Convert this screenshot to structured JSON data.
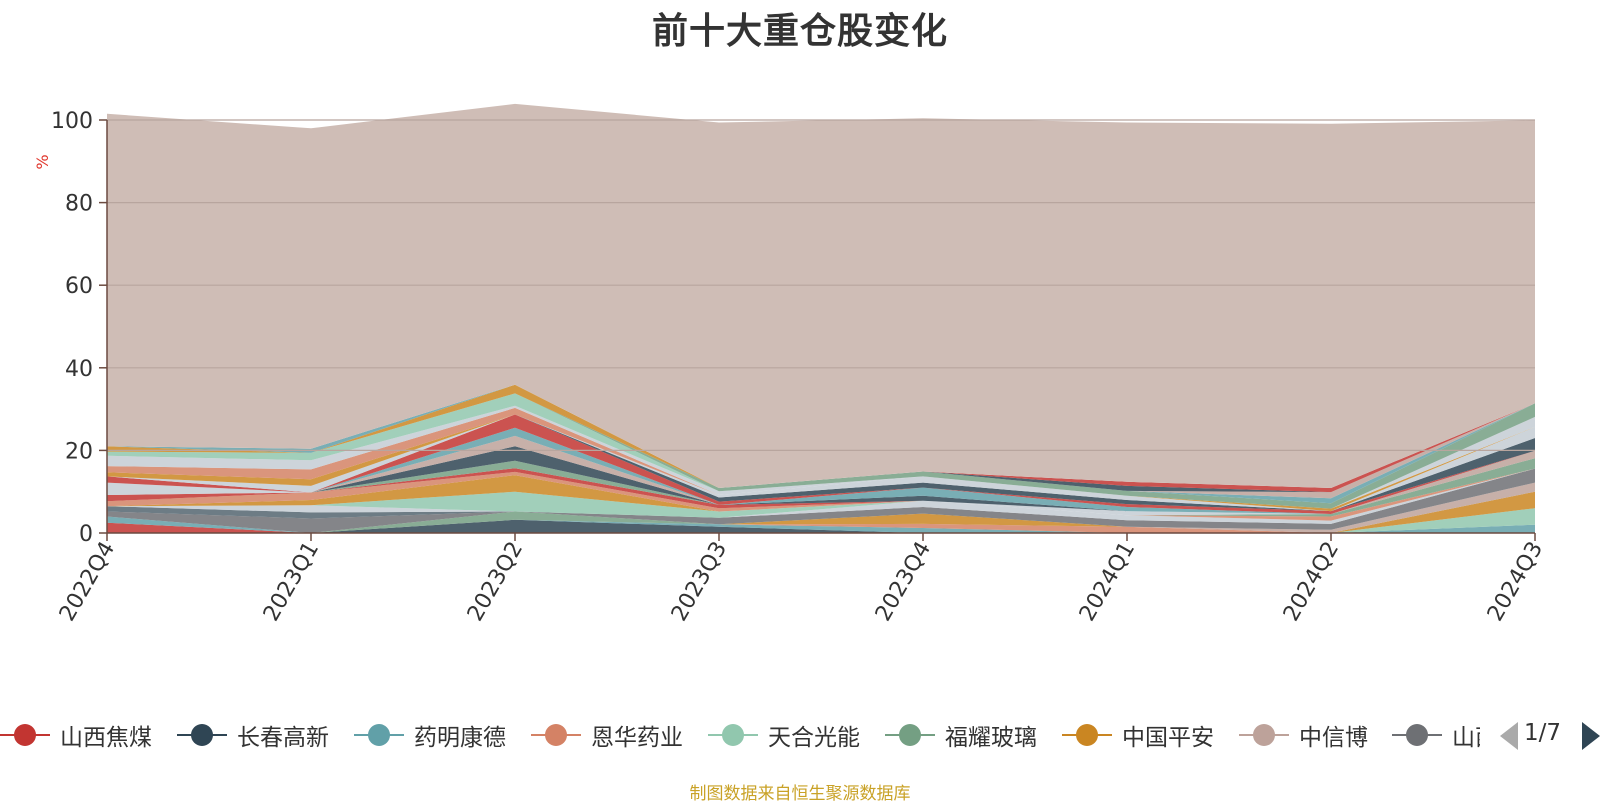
{
  "chart_data": {
    "type": "area",
    "stacked": true,
    "title": "前十大重仓股变化",
    "ylabel": "%",
    "ylim": [
      0,
      100
    ],
    "yticks": [
      "0",
      "20",
      "40",
      "60",
      "80",
      "100"
    ],
    "grid": true,
    "categories": [
      "2022Q4",
      "2023Q1",
      "2023Q2",
      "2023Q3",
      "2023Q4",
      "2024Q1",
      "2024Q2",
      "2024Q3"
    ],
    "series": [
      {
        "name": "山西焦煤",
        "color": "#c23531",
        "values": [
          2.5,
          0,
          0,
          0,
          0,
          0,
          0,
          0
        ]
      },
      {
        "name": "长春高新",
        "color": "#2f4554",
        "values": [
          0,
          0,
          3.2,
          1.5,
          0,
          0,
          0,
          0
        ]
      },
      {
        "name": "药明康德",
        "color": "#61a0a8",
        "values": [
          1.5,
          0,
          0,
          0.6,
          1.2,
          0,
          0,
          2.0
        ]
      },
      {
        "name": "恩华药业",
        "color": "#d48265",
        "values": [
          0,
          0,
          0,
          0,
          1.0,
          1.5,
          0,
          0
        ]
      },
      {
        "name": "天合光能",
        "color": "#91c7ae",
        "values": [
          0,
          0,
          0,
          0,
          0,
          0,
          0,
          4.0
        ]
      },
      {
        "name": "福耀玻璃",
        "color": "#749f83",
        "values": [
          0,
          0,
          2.0,
          0,
          0,
          0,
          0,
          0
        ]
      },
      {
        "name": "中国平安",
        "color": "#ca8622",
        "values": [
          0,
          0,
          0,
          0,
          2.5,
          0,
          0,
          4.0
        ]
      },
      {
        "name": "中信博",
        "color": "#bda29a",
        "values": [
          0,
          0,
          0,
          0,
          0,
          0,
          0.8,
          2.2
        ]
      },
      {
        "name": "山西汾酒",
        "color": "#6e7074",
        "values": [
          1.2,
          3.5,
          0,
          1.6,
          1.6,
          1.6,
          1.4,
          3.4
        ]
      }
    ],
    "rest_series": [
      {
        "color": "#546570",
        "values": [
          1.3,
          1.5,
          0,
          0,
          0,
          0,
          0,
          0
        ]
      },
      {
        "color": "#c4ccd3",
        "values": [
          0,
          1.7,
          0,
          0,
          1.5,
          1.2,
          0.8,
          0
        ]
      },
      {
        "color": "#91c7ae",
        "values": [
          0,
          0,
          4.8,
          1.5,
          0,
          0,
          0,
          0
        ]
      },
      {
        "color": "#ca8622",
        "values": [
          0,
          1.3,
          4.0,
          0,
          0,
          0,
          0,
          0
        ]
      },
      {
        "color": "#d48265",
        "values": [
          1.2,
          1.8,
          0.8,
          0.8,
          0,
          0,
          1.0,
          0
        ]
      },
      {
        "color": "#c23531",
        "values": [
          1.5,
          0,
          0.9,
          0.8,
          0,
          0,
          0,
          0
        ]
      },
      {
        "color": "#749f83",
        "values": [
          0,
          0,
          1.8,
          0,
          0,
          0,
          0.6,
          2.5
        ]
      },
      {
        "color": "#c4ccd3",
        "values": [
          3.0,
          0,
          0,
          0,
          0,
          1.0,
          0,
          0
        ]
      },
      {
        "color": "#2f4554",
        "values": [
          0,
          0,
          3.5,
          0,
          1.2,
          0,
          0,
          0
        ]
      },
      {
        "color": "#bda29a",
        "values": [
          0,
          0,
          2.5,
          0,
          0,
          0,
          0,
          1.8
        ]
      },
      {
        "color": "#61a0a8",
        "values": [
          0,
          0,
          2.0,
          0,
          2.0,
          1.0,
          0,
          0
        ]
      },
      {
        "color": "#c23531",
        "values": [
          1.5,
          0,
          3.2,
          0.8,
          0,
          0.7,
          0.7,
          0
        ]
      },
      {
        "color": "#2f4554",
        "values": [
          0,
          0,
          0,
          1.0,
          1.2,
          1.0,
          0,
          3.1
        ]
      },
      {
        "color": "#c4ccd3",
        "values": [
          0,
          1.6,
          0,
          0.6,
          1.5,
          1.0,
          0,
          2.7
        ]
      },
      {
        "color": "#ca8622",
        "values": [
          1.0,
          1.6,
          0,
          0,
          0,
          0,
          0.6,
          0
        ]
      },
      {
        "color": "#d48265",
        "values": [
          1.5,
          2.4,
          1.6,
          0,
          0,
          0,
          0,
          0
        ]
      },
      {
        "color": "#c4ccd3",
        "values": [
          2.5,
          2.2,
          0.5,
          0.9,
          0,
          0,
          0,
          2.4
        ]
      },
      {
        "color": "#91c7ae",
        "values": [
          1.0,
          1.8,
          3.0,
          0,
          0,
          0,
          0,
          0
        ]
      },
      {
        "color": "#749f83",
        "values": [
          0,
          0,
          0,
          0.8,
          1.2,
          1.2,
          1.3,
          3.3
        ]
      },
      {
        "color": "#ca8622",
        "values": [
          1.3,
          0,
          2.1,
          0,
          0,
          0,
          0,
          0
        ]
      },
      {
        "color": "#61a0a8",
        "values": [
          0,
          1.0,
          0,
          0,
          0,
          0,
          1.2,
          0
        ]
      },
      {
        "color": "#bda29a",
        "values": [
          0,
          0,
          0,
          0,
          0,
          0,
          1.5,
          0
        ]
      },
      {
        "color": "#2f4554",
        "values": [
          0,
          0,
          0,
          0,
          0,
          1.2,
          0,
          0
        ]
      },
      {
        "color": "#c23531",
        "values": [
          0,
          0,
          0,
          0,
          0,
          1.0,
          1.0,
          0
        ]
      }
    ],
    "other": {
      "color": "#cfbdb6",
      "values": [
        80.5,
        77.6,
        68.0,
        88.5,
        85.5,
        87.0,
        88.2,
        68.5
      ]
    },
    "legend_page": "1/7",
    "legend_position": "bottom"
  },
  "source_note": "制图数据来自恒生聚源数据库"
}
